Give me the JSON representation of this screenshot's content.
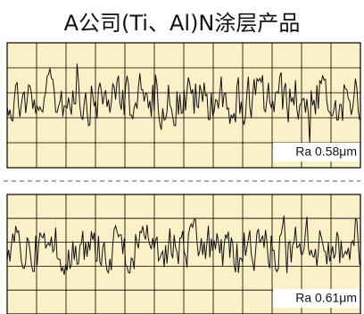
{
  "title": "A公司(Ti、Al)N涂层产品",
  "panels": [
    {
      "label": "Ra 0.58μm"
    },
    {
      "label": "Ra 0.61μm"
    }
  ]
}
